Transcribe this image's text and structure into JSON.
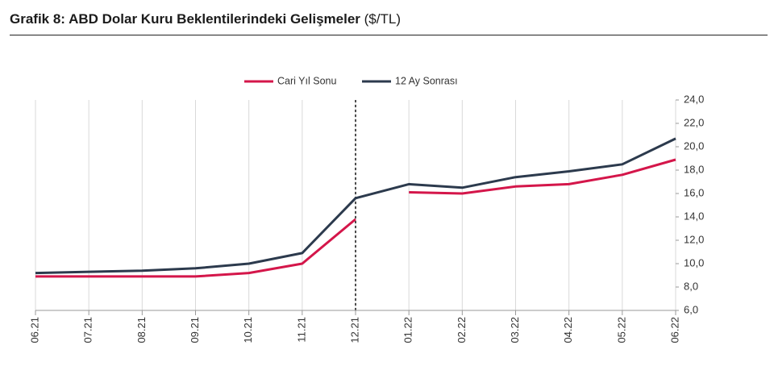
{
  "header": {
    "title": "Grafik 8: ABD Dolar Kuru Beklentilerindeki Gelişmeler",
    "unit": "($/TL)"
  },
  "colors": {
    "series_red": "#d4164a",
    "series_navy": "#2c3a4d",
    "grid": "#d9d9d9",
    "axis": "#9a9a9a",
    "divider": "#222222"
  },
  "chart_data": {
    "type": "line",
    "title": "Grafik 8: ABD Dolar Kuru Beklentilerindeki Gelişmeler",
    "xlabel": "",
    "ylabel": "",
    "categories": [
      "06.21",
      "07.21",
      "08.21",
      "09.21",
      "10.21",
      "11.21",
      "12.21",
      "01.22",
      "02.22",
      "03.22",
      "04.22",
      "05.22",
      "06.22"
    ],
    "ylim": [
      6.0,
      24.0
    ],
    "yticks": [
      "6,0",
      "8,0",
      "10,0",
      "12,0",
      "14,0",
      "16,0",
      "18,0",
      "20,0",
      "22,0",
      "24,0"
    ],
    "ytick_values": [
      6,
      8,
      10,
      12,
      14,
      16,
      18,
      20,
      22,
      24
    ],
    "grid": "vertical",
    "legend_position": "top-center",
    "divider_at": "12.21",
    "series": [
      {
        "name": "Cari Yıl Sonu",
        "color": "#d4164a",
        "segments": [
          [
            8.9,
            8.9,
            8.9,
            8.9,
            9.2,
            10.0,
            13.8
          ],
          [
            16.1,
            16.0,
            16.6,
            16.8,
            17.6,
            18.9
          ]
        ],
        "segment_start_index": [
          0,
          7
        ]
      },
      {
        "name": "12 Ay Sonrası",
        "color": "#2c3a4d",
        "segments": [
          [
            9.2,
            9.3,
            9.4,
            9.6,
            10.0,
            10.9,
            15.6,
            16.8,
            16.5,
            17.4,
            17.9,
            18.5,
            20.7
          ]
        ],
        "segment_start_index": [
          0
        ]
      }
    ]
  }
}
